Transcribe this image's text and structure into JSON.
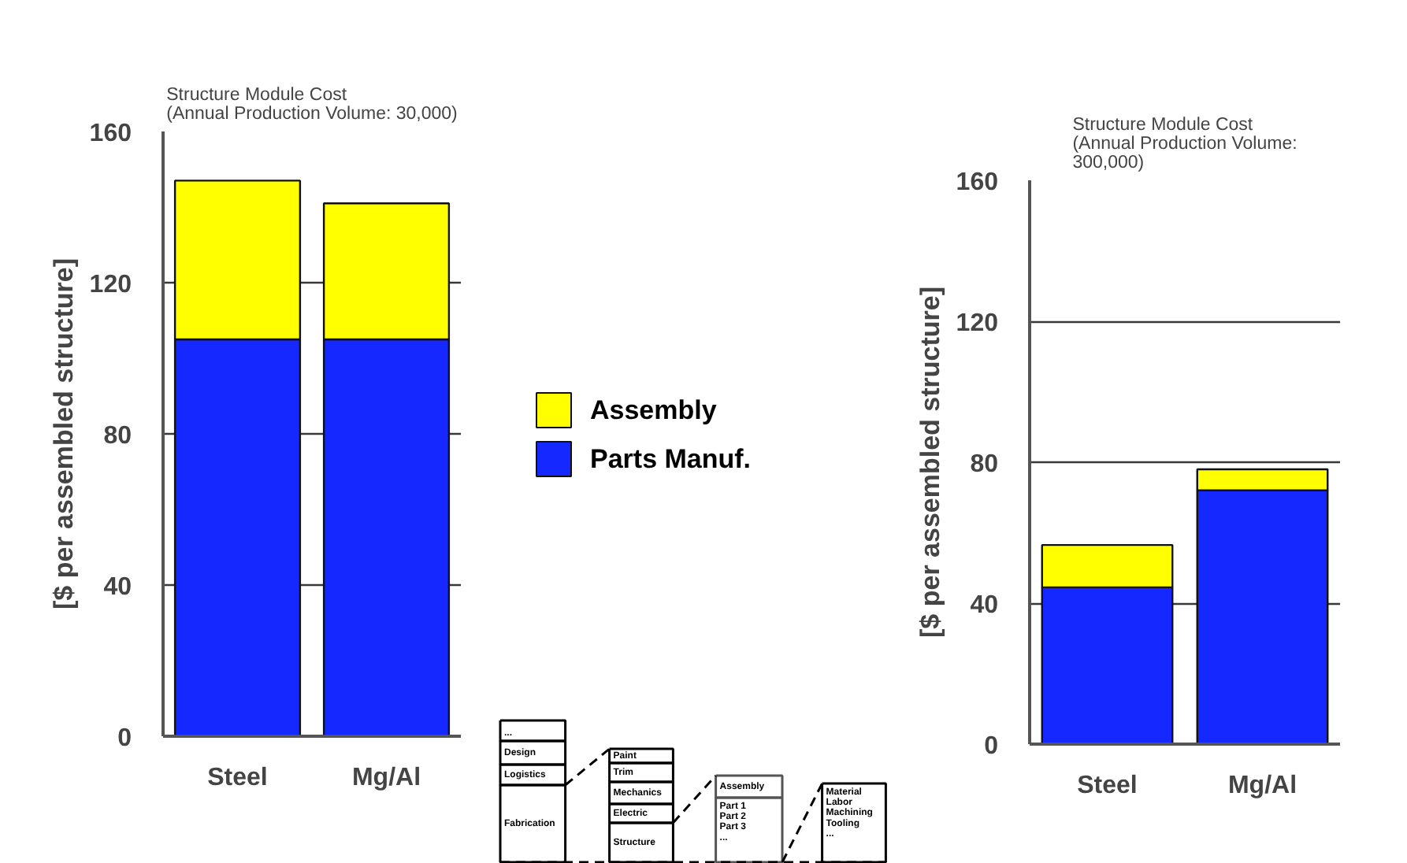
{
  "chart_data": [
    {
      "type": "bar",
      "title": "Structure Module Cost\n(Annual Production Volume: 30,000)",
      "ylabel": "[$ per assembled structure]",
      "categories": [
        "Steel",
        "Mg/Al"
      ],
      "stacked": true,
      "series": [
        {
          "name": "Parts Manuf.",
          "color": "#1428ff",
          "values": [
            105,
            105
          ]
        },
        {
          "name": "Assembly",
          "color": "#ffff00",
          "values": [
            42,
            36
          ]
        }
      ],
      "ylim": [
        0,
        160
      ],
      "yticks": [
        0,
        40,
        80,
        120,
        160
      ],
      "grid": "y",
      "legend": "right"
    },
    {
      "type": "bar",
      "title": "Structure Module Cost\n(Annual Production Volume:\n300,000)",
      "ylabel": "[$ per assembled structure]",
      "categories": [
        "Steel",
        "Mg/Al"
      ],
      "stacked": true,
      "series": [
        {
          "color": "#1428ff",
          "values": [
            44.5,
            72
          ]
        },
        {
          "color": "#ffff00",
          "values": [
            12,
            6
          ]
        }
      ],
      "ylim": [
        0,
        160
      ],
      "yticks": [
        0,
        40,
        80,
        120,
        160
      ],
      "grid": "y"
    },
    {
      "type": "other",
      "annotations": [
        "...",
        "Design",
        "Logistics",
        "Fabrication",
        "Paint",
        "Trim",
        "Mechanics",
        "Electric",
        "Structure",
        "Assembly",
        "Part 1\nPart 2\nPart 3\n...",
        "Material\nLabor\nMachining\nTooling\n..."
      ]
    }
  ]
}
